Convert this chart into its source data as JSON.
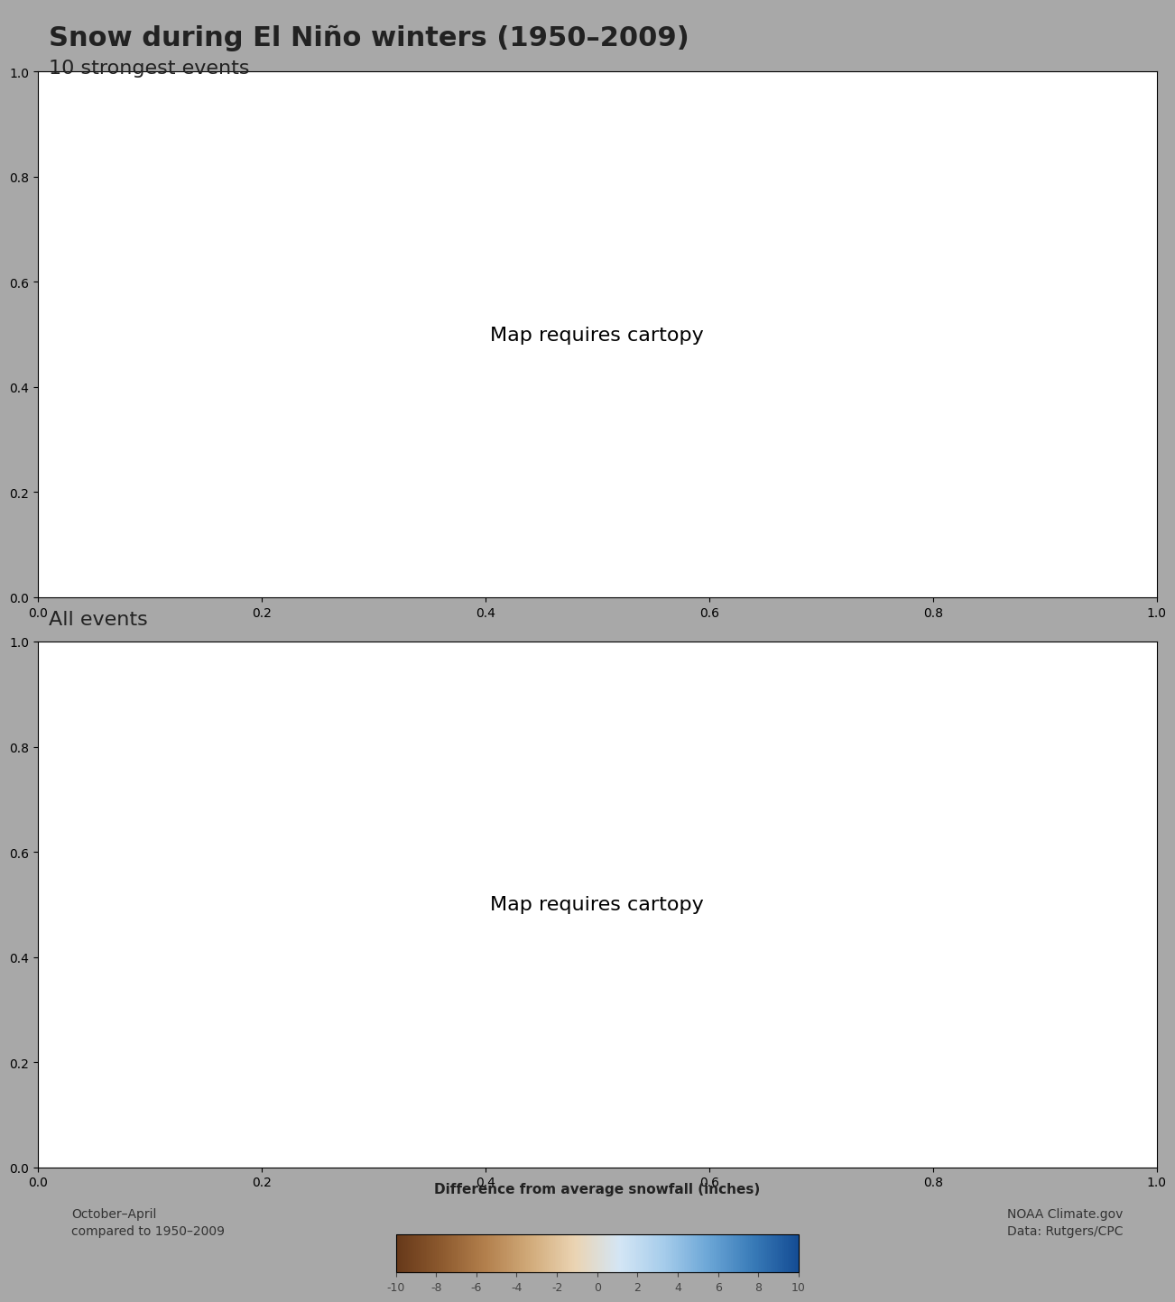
{
  "title": "Snow during El Niño winters (1950–2009)",
  "subtitle1": "10 strongest events",
  "subtitle2": "All events",
  "colorbar_label": "Difference from average snowfall (inches)",
  "colorbar_ticks": [
    -10,
    -8,
    -6,
    -4,
    -2,
    0,
    2,
    4,
    6,
    8,
    10
  ],
  "bottom_left": "October–April\ncompared to 1950–2009",
  "bottom_right": "NOAA Climate.gov\nData: Rutgers/CPC",
  "bg_color": "#a0a0a0",
  "panel_bg": "#ffffff",
  "vmin": -10,
  "vmax": 10,
  "brown_color": "#8B5E3C",
  "blue_color": "#5B8DB8"
}
